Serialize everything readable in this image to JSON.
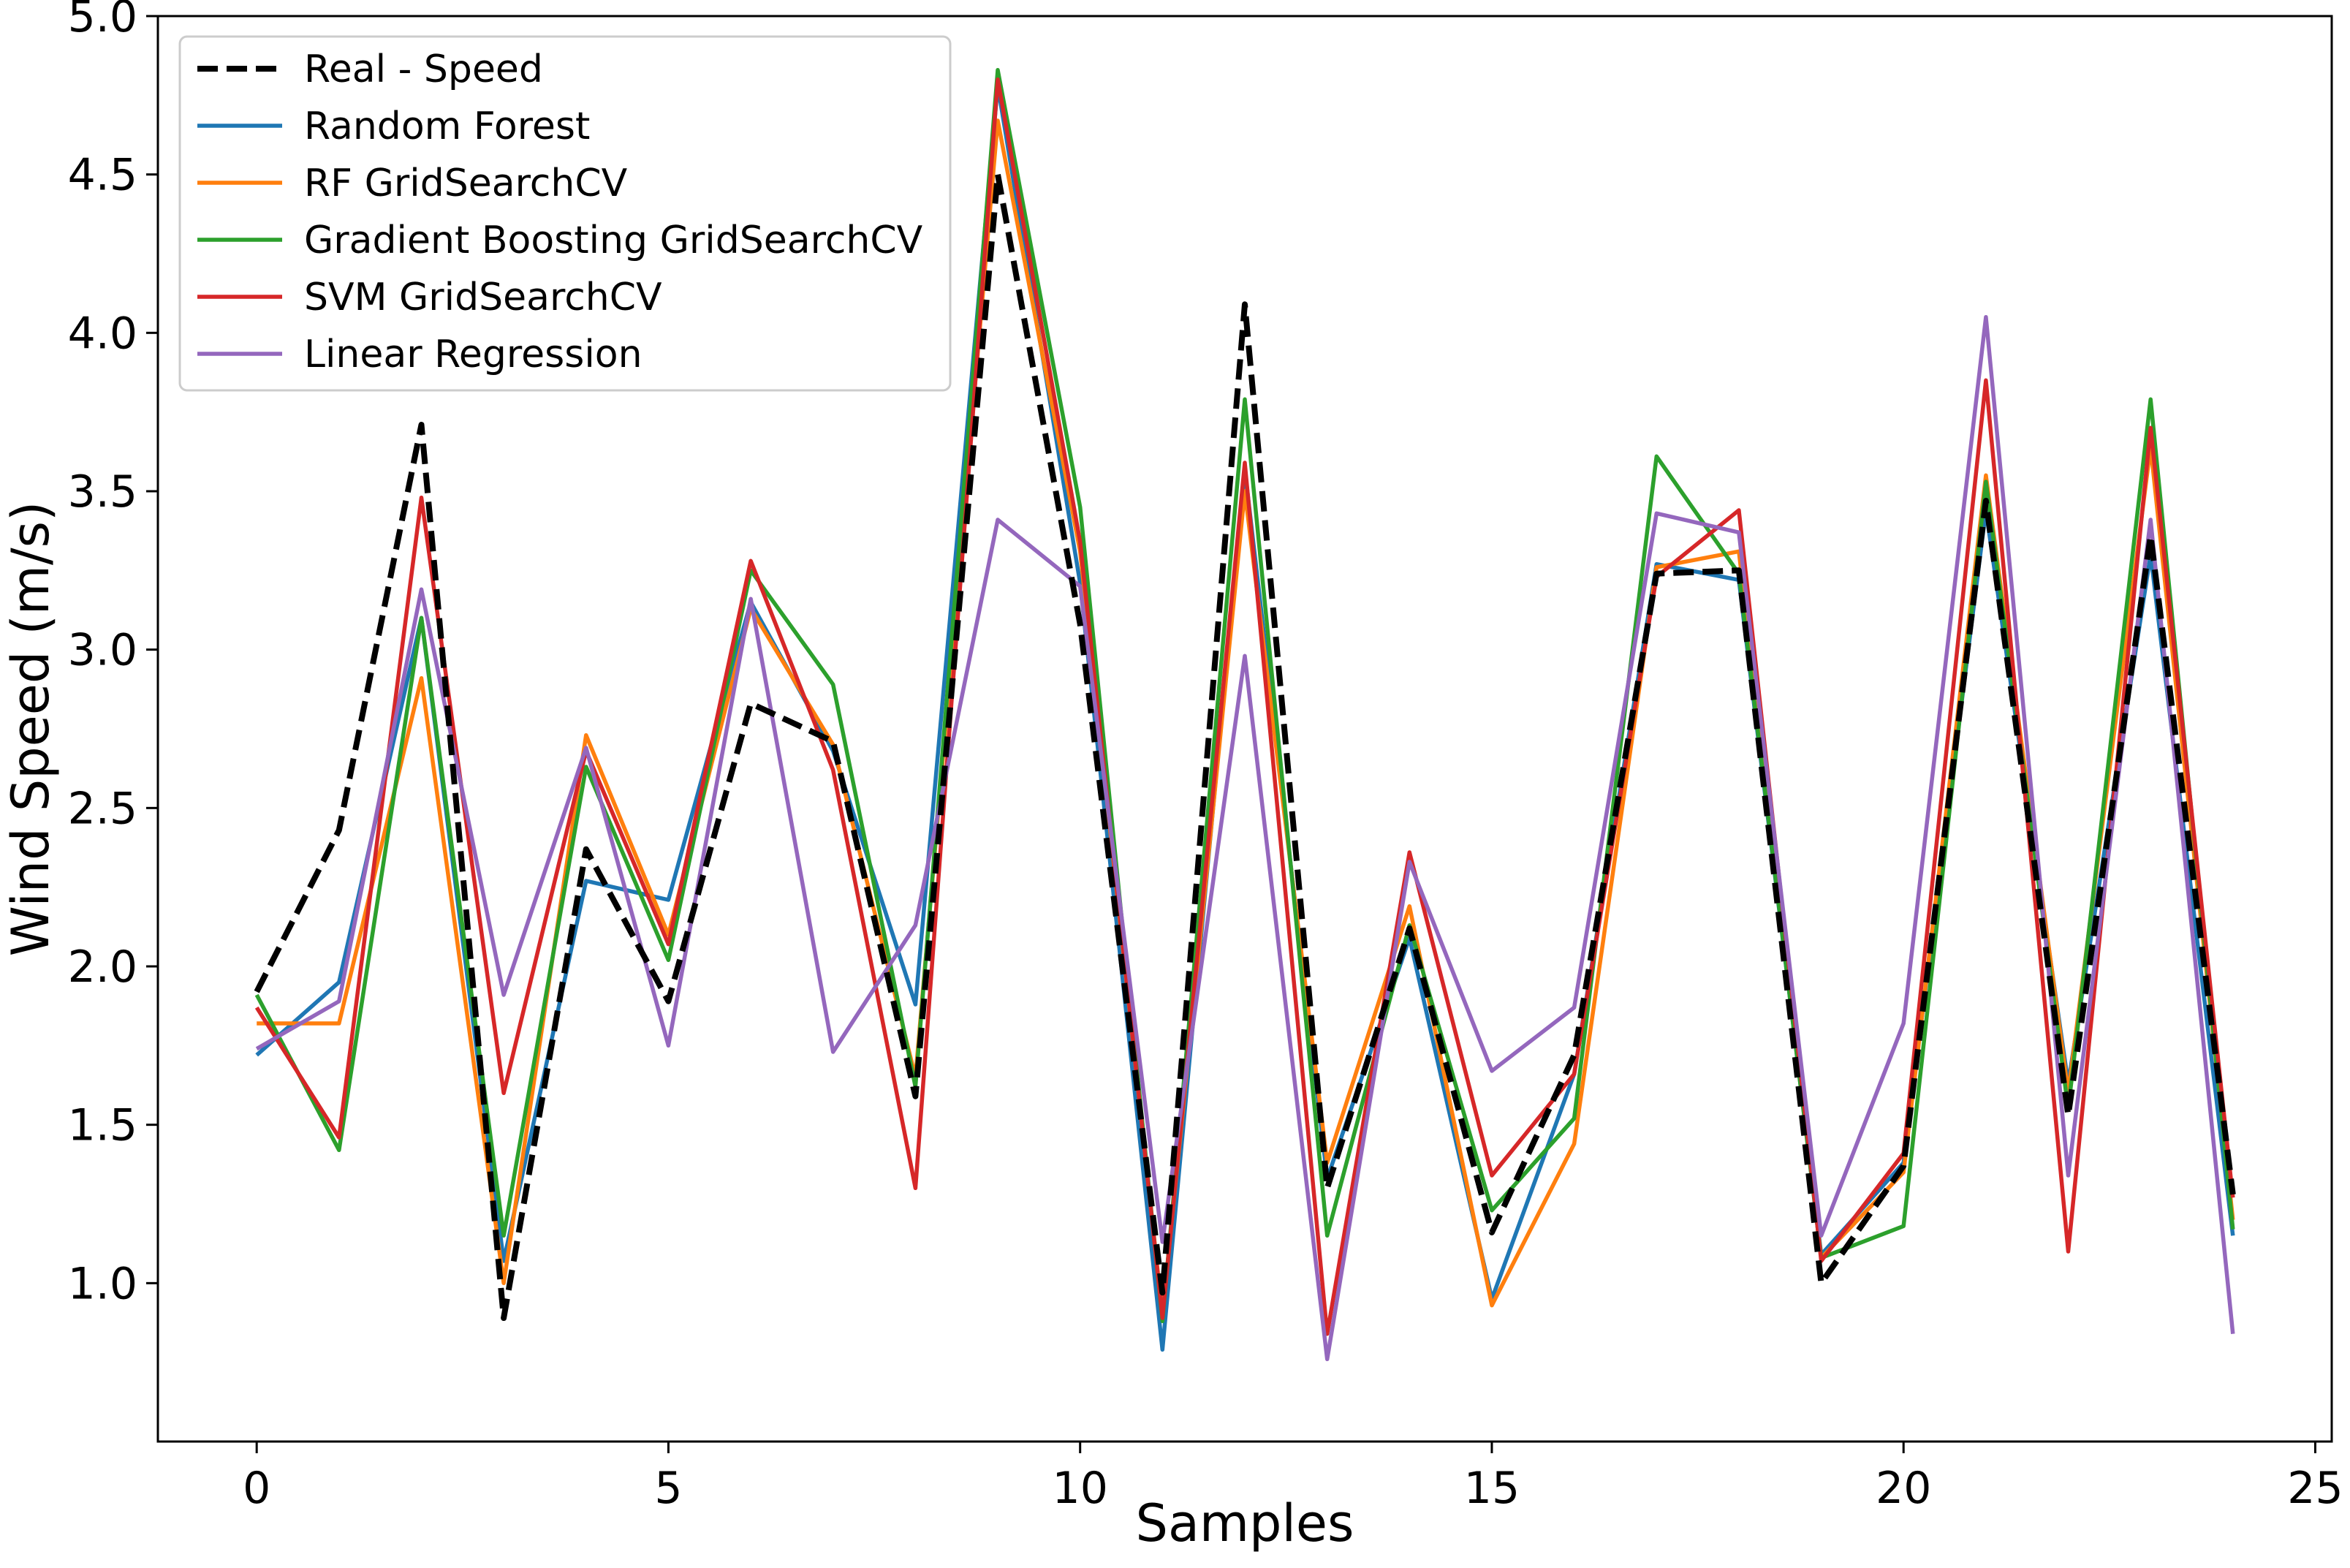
{
  "chart_data": {
    "type": "line",
    "title": "",
    "xlabel": "Samples",
    "ylabel": "Wind Speed (m/s)",
    "xlim": [
      -1.2,
      25.2
    ],
    "ylim": [
      0.5,
      5.0
    ],
    "xticks": [
      0,
      5,
      10,
      15,
      20,
      25
    ],
    "yticks": [
      1.0,
      1.5,
      2.0,
      2.5,
      3.0,
      3.5,
      4.0,
      4.5,
      5.0
    ],
    "xtick_labels": [
      "0",
      "5",
      "10",
      "15",
      "20",
      "25"
    ],
    "ytick_labels": [
      "1.0",
      "1.5",
      "2.0",
      "2.5",
      "3.0",
      "3.5",
      "4.0",
      "4.5",
      "5.0"
    ],
    "grid": false,
    "legend_position": "upper-left",
    "x": [
      0,
      1,
      2,
      3,
      4,
      5,
      6,
      7,
      8,
      9,
      10,
      11,
      12,
      13,
      14,
      15,
      16,
      17,
      18,
      19,
      20,
      21,
      22,
      23,
      24
    ],
    "series": [
      {
        "name": "Real - Speed",
        "color": "#000000",
        "dashed": true,
        "values": [
          1.92,
          2.43,
          3.71,
          0.89,
          2.37,
          1.89,
          2.83,
          2.71,
          1.59,
          4.5,
          3.08,
          0.97,
          4.09,
          1.3,
          2.12,
          1.16,
          1.72,
          3.24,
          3.25,
          1.0,
          1.37,
          3.47,
          1.53,
          3.36,
          1.28
        ]
      },
      {
        "name": "Random Forest",
        "color": "#1f77b4",
        "dashed": false,
        "values": [
          1.72,
          1.95,
          3.1,
          1.07,
          2.27,
          2.21,
          3.15,
          2.68,
          1.88,
          4.78,
          3.21,
          0.79,
          3.57,
          1.33,
          2.09,
          0.95,
          1.66,
          3.27,
          3.22,
          1.09,
          1.38,
          3.44,
          1.63,
          3.3,
          1.15
        ]
      },
      {
        "name": "RF GridSearchCV",
        "color": "#ff7f0e",
        "dashed": false,
        "values": [
          1.82,
          1.82,
          2.91,
          1.0,
          2.73,
          2.1,
          3.13,
          2.7,
          1.65,
          4.67,
          3.31,
          0.9,
          3.5,
          1.38,
          2.19,
          0.93,
          1.44,
          3.26,
          3.31,
          1.08,
          1.35,
          3.55,
          1.6,
          3.64,
          1.2
        ]
      },
      {
        "name": "Gradient Boosting GridSearchCV",
        "color": "#2ca02c",
        "dashed": false,
        "values": [
          1.91,
          1.42,
          3.1,
          1.15,
          2.63,
          2.02,
          3.25,
          2.89,
          1.62,
          4.83,
          3.45,
          0.88,
          3.79,
          1.15,
          2.13,
          1.23,
          1.52,
          3.61,
          3.24,
          1.08,
          1.18,
          3.53,
          1.55,
          3.79,
          1.17
        ]
      },
      {
        "name": "SVM GridSearchCV",
        "color": "#d62728",
        "dashed": false,
        "values": [
          1.87,
          1.46,
          3.48,
          1.6,
          2.68,
          2.07,
          3.28,
          2.62,
          1.3,
          4.8,
          3.34,
          0.89,
          3.59,
          0.84,
          2.36,
          1.34,
          1.66,
          3.23,
          3.44,
          1.07,
          1.41,
          3.85,
          1.1,
          3.7,
          1.27
        ]
      },
      {
        "name": "Linear Regression",
        "color": "#9467bd",
        "dashed": false,
        "values": [
          1.74,
          1.89,
          3.19,
          1.91,
          2.69,
          1.75,
          3.16,
          1.73,
          2.13,
          3.41,
          3.2,
          1.13,
          2.98,
          0.76,
          2.33,
          1.67,
          1.87,
          3.43,
          3.37,
          1.15,
          1.82,
          4.05,
          1.34,
          3.41,
          0.84
        ]
      }
    ]
  }
}
